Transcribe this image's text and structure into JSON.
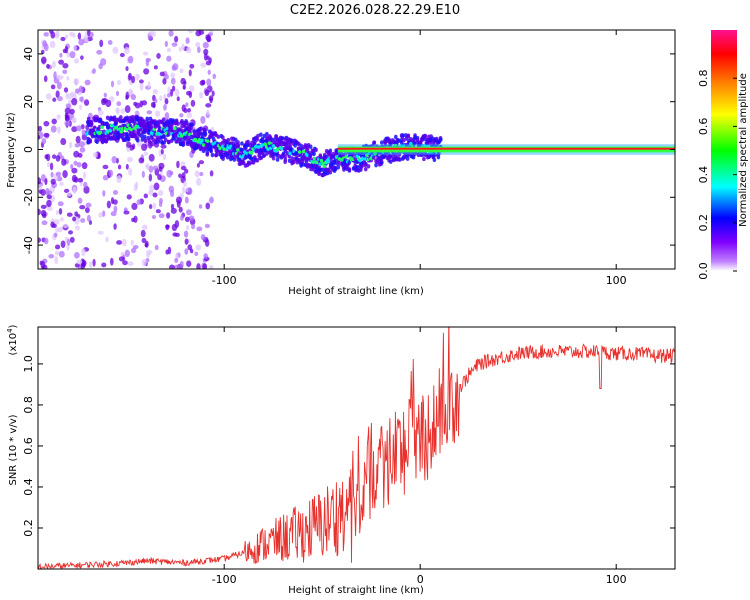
{
  "title": "C2E2.2026.028.22.29.E10",
  "chart_data": [
    {
      "type": "heatmap",
      "name": "spectrogram",
      "xlabel": "Height of straight line (km)",
      "ylabel": "Frequency (Hz)",
      "xlim": [
        -195,
        130
      ],
      "ylim": [
        -50,
        50
      ],
      "x_ticks": [
        -100,
        0,
        100
      ],
      "x_tick_labels": [
        "-100",
        "",
        "100"
      ],
      "y_ticks": [
        -40,
        -20,
        0,
        20,
        40
      ],
      "y_tick_labels": [
        "-40",
        "-20",
        "0",
        "20",
        "40"
      ],
      "colorbar": {
        "label": "Normalized spectral amplitude",
        "range": [
          0,
          1
        ],
        "ticks": [
          0.0,
          0.2,
          0.4,
          0.6,
          0.8
        ],
        "tick_labels": [
          "0.0",
          "0.2",
          "0.4",
          "0.6",
          "0.8"
        ],
        "colors": [
          "#ffffff",
          "#8000ff",
          "#0000ff",
          "#00ffff",
          "#00ff00",
          "#ffff00",
          "#ff8000",
          "#ff0000",
          "#ff00ff"
        ]
      },
      "ridge": {
        "x": [
          -165,
          -150,
          -135,
          -120,
          -110,
          -100,
          -90,
          -80,
          -70,
          -60,
          -50,
          -45,
          -40,
          -30,
          -20,
          -10,
          0,
          10,
          130
        ],
        "y": [
          8,
          9,
          8,
          7,
          3,
          1,
          -2,
          2,
          0,
          -2,
          -6,
          -4,
          -4,
          -4,
          -1,
          1,
          1,
          0,
          0
        ]
      }
    },
    {
      "type": "line",
      "name": "snr",
      "xlabel": "Height of straight line (km)",
      "ylabel": "SNR (10 * v/v)",
      "ylabel_scale": "(x10",
      "ylabel_scale_exp": "4",
      "ylabel_scale_close": ")",
      "xlim": [
        -195,
        130
      ],
      "ylim": [
        0,
        1.18
      ],
      "x_ticks": [
        -100,
        0,
        100
      ],
      "x_tick_labels": [
        "-100",
        "0",
        "100"
      ],
      "y_ticks": [
        0.2,
        0.4,
        0.6,
        0.8,
        1.0
      ],
      "y_tick_labels": [
        "0.2",
        "0.4",
        "0.6",
        "0.8",
        "1.0"
      ],
      "series": [
        {
          "name": "SNR",
          "color": "#e8302c",
          "x": [
            -195,
            -170,
            -150,
            -140,
            -120,
            -100,
            -90,
            -80,
            -70,
            -60,
            -50,
            -40,
            -35,
            -30,
            -25,
            -20,
            -15,
            -10,
            -5,
            0,
            5,
            10,
            15,
            20,
            25,
            30,
            40,
            50,
            60,
            70,
            80,
            90,
            100,
            110,
            120,
            130
          ],
          "y": [
            0.01,
            0.02,
            0.03,
            0.04,
            0.03,
            0.05,
            0.08,
            0.12,
            0.15,
            0.18,
            0.22,
            0.28,
            0.35,
            0.42,
            0.47,
            0.52,
            0.55,
            0.58,
            0.62,
            0.65,
            0.68,
            0.75,
            0.82,
            0.88,
            0.95,
            1.0,
            1.03,
            1.05,
            1.06,
            1.06,
            1.06,
            1.06,
            1.05,
            1.05,
            1.04,
            1.04
          ]
        }
      ]
    }
  ]
}
